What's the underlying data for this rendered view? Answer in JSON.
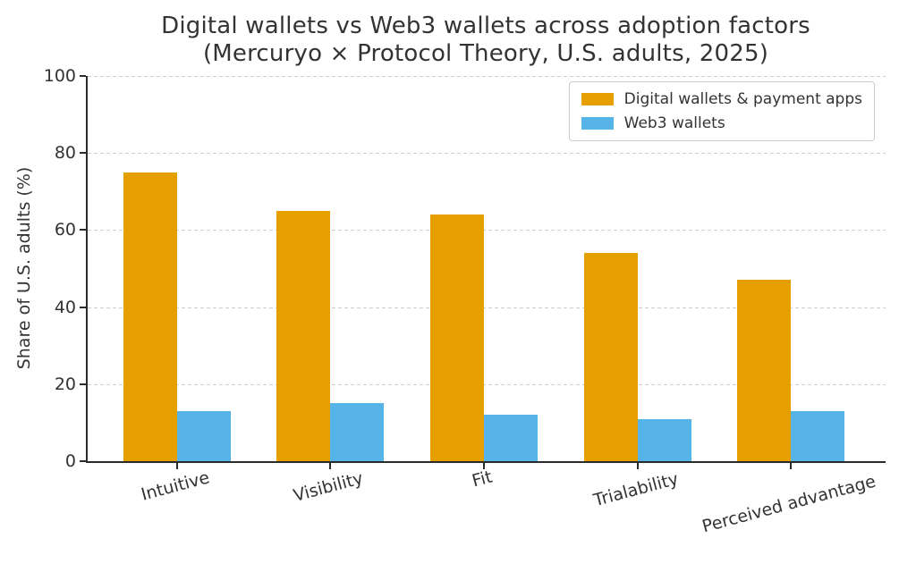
{
  "chart_data": {
    "type": "bar",
    "title": "Digital wallets vs Web3 wallets across adoption factors",
    "subtitle": "(Mercuryo × Protocol Theory, U.S. adults, 2025)",
    "ylabel": "Share of U.S. adults (%)",
    "xlabel": "",
    "categories": [
      "Intuitive",
      "Visibility",
      "Fit",
      "Trialability",
      "Perceived advantage"
    ],
    "series": [
      {
        "name": "Digital wallets & payment apps",
        "color": "#E69F00",
        "values": [
          75,
          65,
          64,
          54,
          47
        ]
      },
      {
        "name": "Web3 wallets",
        "color": "#56B4E9",
        "values": [
          13,
          15,
          12,
          11,
          13
        ]
      }
    ],
    "ylim": [
      0,
      100
    ],
    "yticks": [
      0,
      20,
      40,
      60,
      80,
      100
    ],
    "grid": "horizontal-dashed",
    "legend_position": "upper-right"
  },
  "colors": {
    "text": "#333333",
    "spine": "#2b2b2b",
    "grid": "#cfcfcf",
    "background": "#ffffff"
  }
}
